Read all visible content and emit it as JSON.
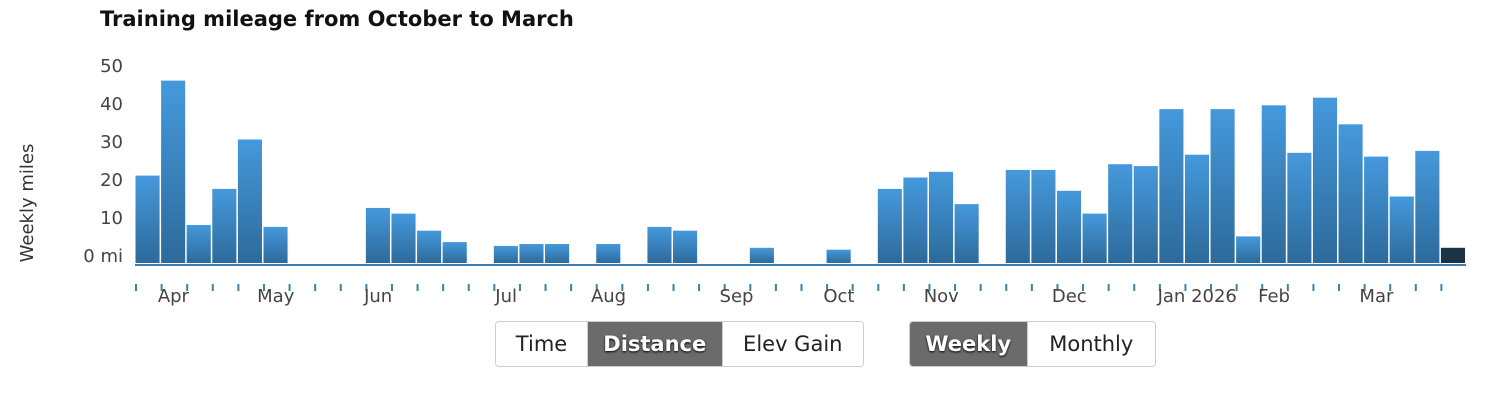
{
  "chart_data": {
    "type": "bar",
    "title": "Training mileage from October to March",
    "y_label": "Weekly miles",
    "categories": [
      null,
      "Apr",
      null,
      null,
      null,
      "May",
      null,
      null,
      null,
      "Jun",
      null,
      null,
      null,
      null,
      "Jul",
      null,
      null,
      null,
      "Aug",
      null,
      null,
      null,
      null,
      "Sep",
      null,
      null,
      null,
      "Oct",
      null,
      null,
      null,
      "Nov",
      null,
      null,
      null,
      null,
      "Dec",
      null,
      null,
      null,
      null,
      "Jan 2026",
      null,
      null,
      "Feb",
      null,
      null,
      null,
      "Mar",
      null,
      null,
      null
    ],
    "values": [
      23,
      48,
      10,
      19.5,
      32.5,
      9.5,
      0,
      0,
      0,
      14.5,
      13,
      8.5,
      5.5,
      0,
      4.5,
      5,
      5,
      0,
      5,
      0,
      9.5,
      8.5,
      0,
      0,
      4,
      0,
      0,
      3.5,
      0,
      19.5,
      22.5,
      24,
      15.5,
      0,
      24.5,
      24.5,
      19,
      13,
      26,
      25.5,
      40.5,
      28.5,
      40.5,
      7,
      41.5,
      29,
      43.5,
      36.5,
      28,
      17.5,
      29.5,
      4
    ],
    "color": "#4599dc",
    "color_dark": "#2d6a9b",
    "current_color": "#1b3347",
    "ylim": [
      0,
      52
    ],
    "yticks": [
      {
        "value": 0,
        "label": "0 mi"
      },
      10,
      20,
      30,
      40,
      50
    ]
  },
  "controls": {
    "metric": {
      "options": [
        "Time",
        "Distance",
        "Elev Gain"
      ],
      "selected": 1
    },
    "period": {
      "options": [
        "Weekly",
        "Monthly"
      ],
      "selected": 0
    }
  }
}
